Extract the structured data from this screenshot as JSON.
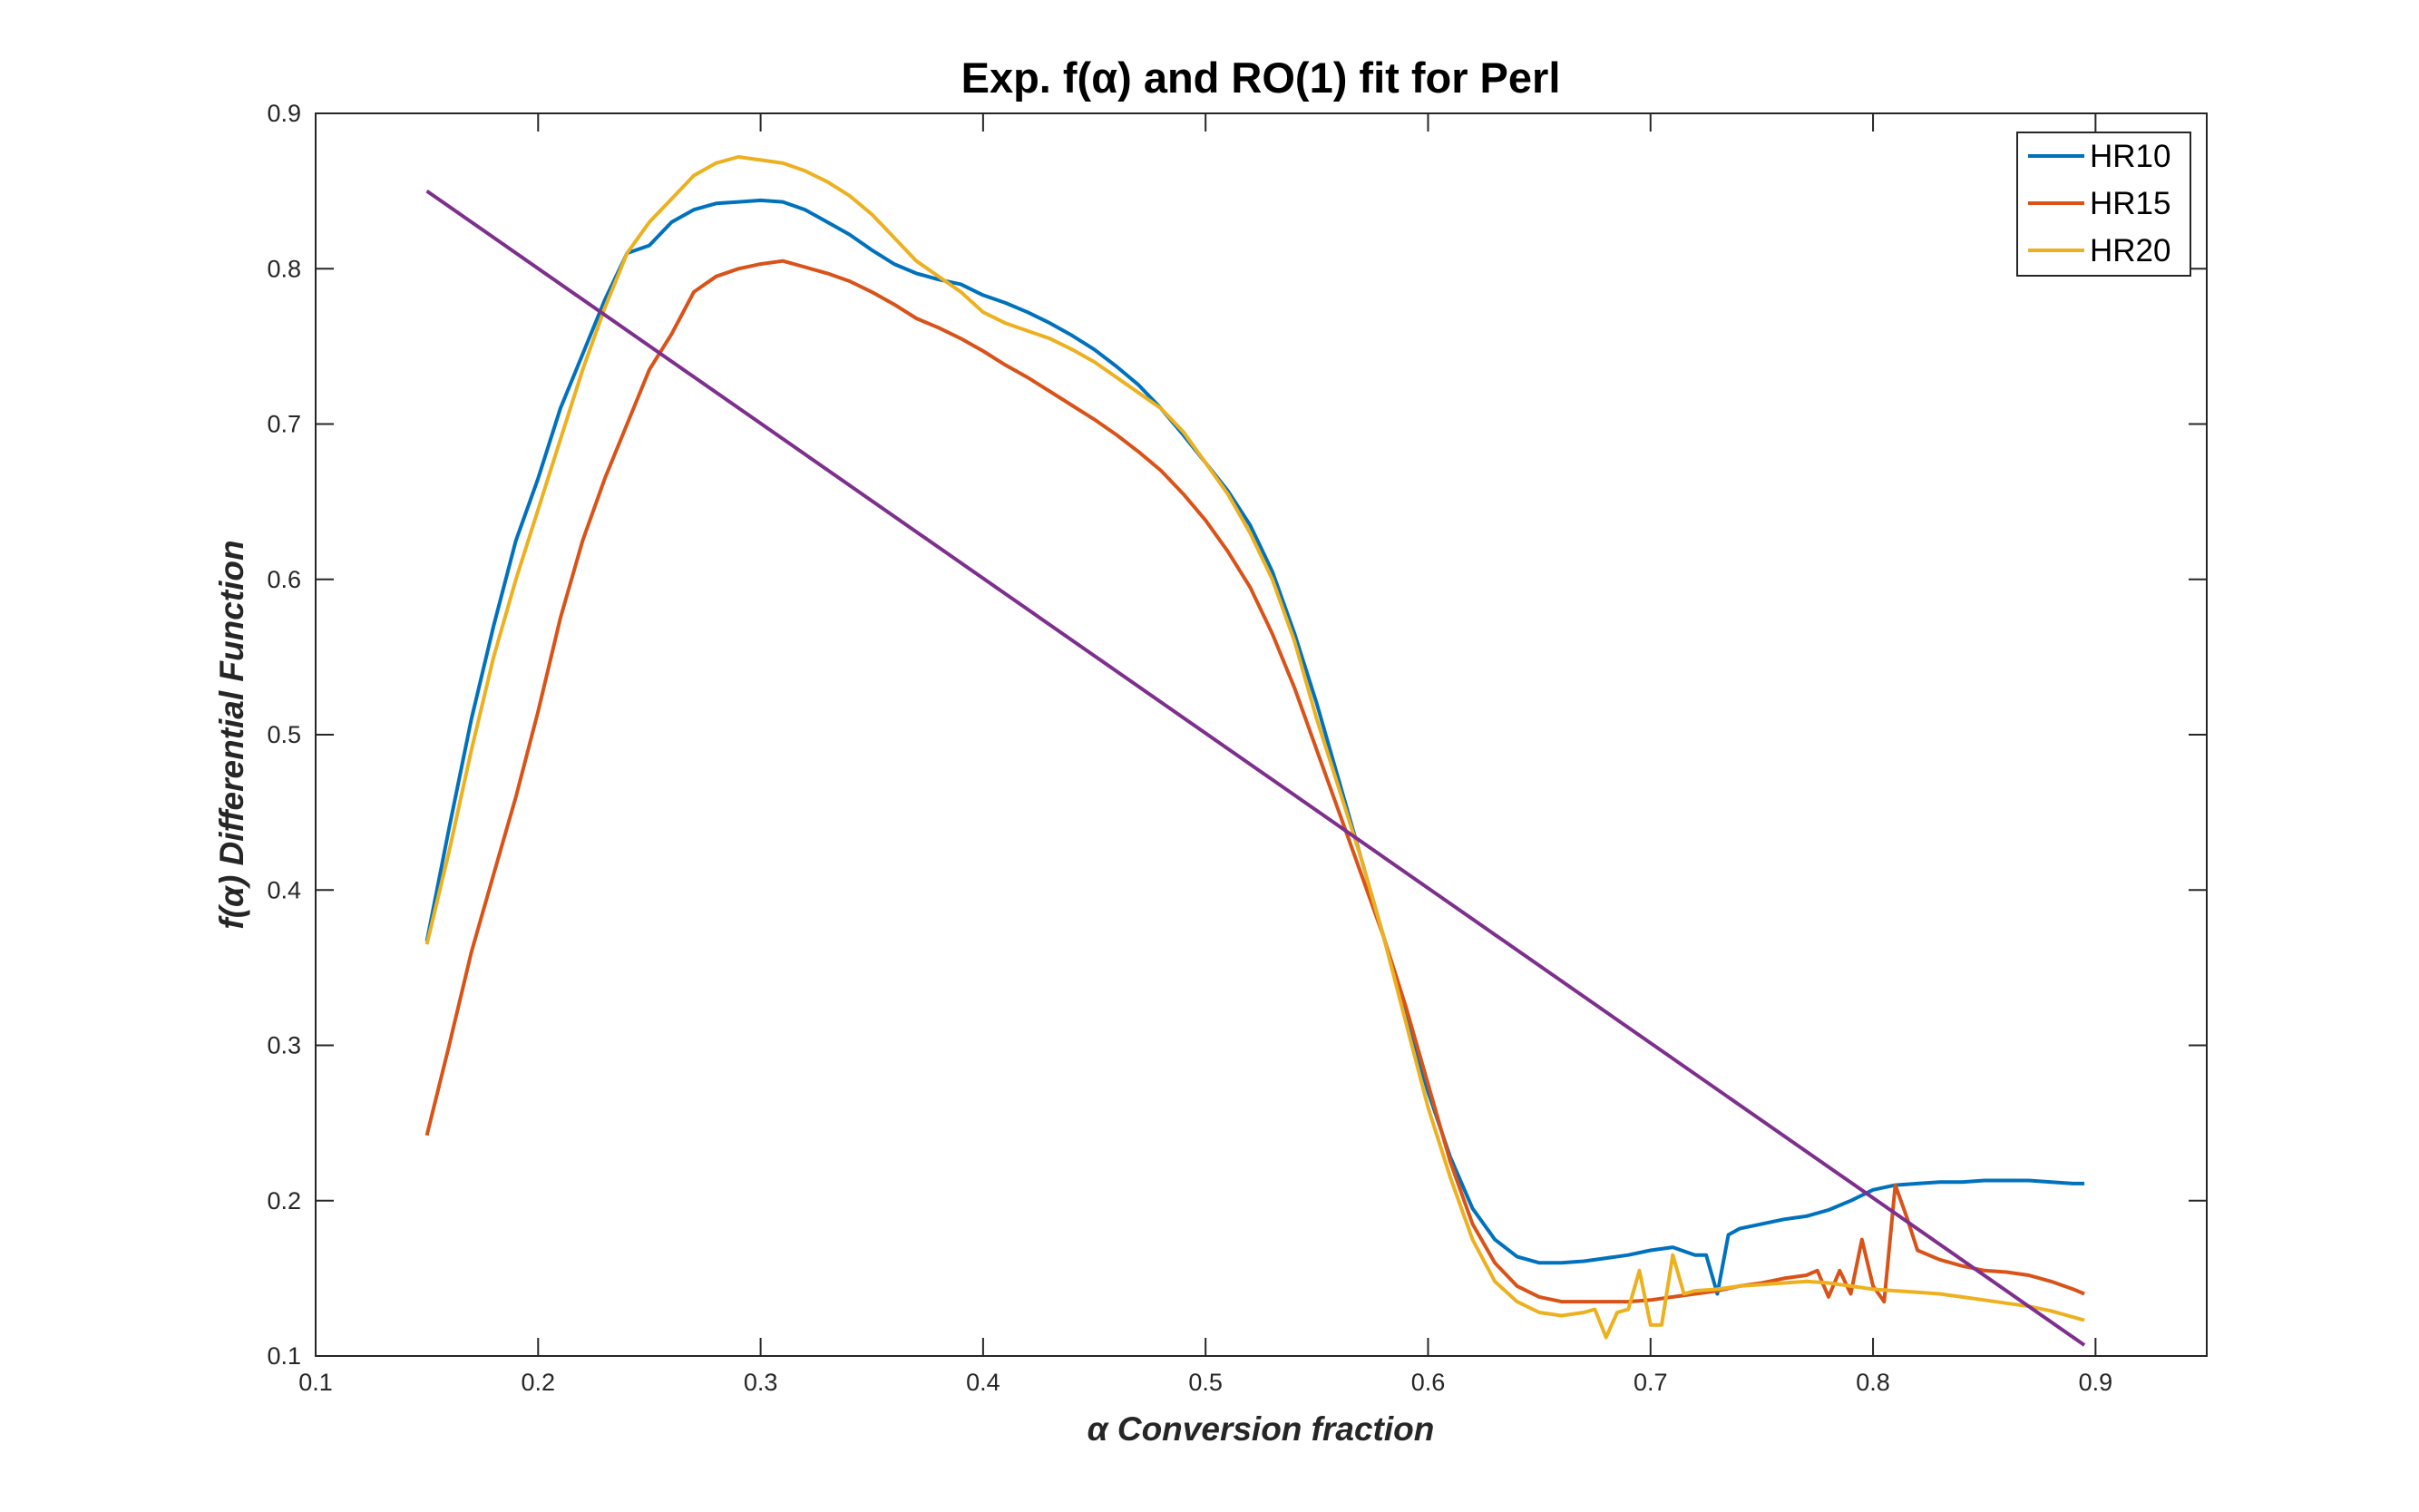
{
  "chart_data": {
    "type": "line",
    "title": "Exp. f(α) and RO(1) fit for Perl",
    "xlabel": "α  Conversion fraction",
    "ylabel": "f(α)  Differential Function",
    "xlim": [
      0.1,
      0.95
    ],
    "ylim": [
      0.1,
      0.9
    ],
    "xticks": [
      0.1,
      0.2,
      0.3,
      0.4,
      0.5,
      0.6,
      0.7,
      0.8,
      0.9
    ],
    "yticks": [
      0.1,
      0.2,
      0.3,
      0.4,
      0.5,
      0.6,
      0.7,
      0.8,
      0.9
    ],
    "xtick_labels": [
      "0.1",
      "0.2",
      "0.3",
      "0.4",
      "0.5",
      "0.6",
      "0.7",
      "0.8",
      "0.9"
    ],
    "ytick_labels": [
      "0.1",
      "0.2",
      "0.3",
      "0.4",
      "0.5",
      "0.6",
      "0.7",
      "0.8",
      "0.9"
    ],
    "grid": false,
    "legend_position": "top-right",
    "series": [
      {
        "name": "HR10",
        "color": "#0072BD",
        "points": [
          [
            0.15,
            0.367
          ],
          [
            0.16,
            0.44
          ],
          [
            0.17,
            0.51
          ],
          [
            0.18,
            0.57
          ],
          [
            0.19,
            0.625
          ],
          [
            0.2,
            0.665
          ],
          [
            0.21,
            0.71
          ],
          [
            0.22,
            0.745
          ],
          [
            0.23,
            0.78
          ],
          [
            0.24,
            0.81
          ],
          [
            0.25,
            0.815
          ],
          [
            0.26,
            0.83
          ],
          [
            0.27,
            0.838
          ],
          [
            0.28,
            0.842
          ],
          [
            0.29,
            0.843
          ],
          [
            0.3,
            0.844
          ],
          [
            0.31,
            0.843
          ],
          [
            0.32,
            0.838
          ],
          [
            0.33,
            0.83
          ],
          [
            0.34,
            0.822
          ],
          [
            0.35,
            0.812
          ],
          [
            0.36,
            0.803
          ],
          [
            0.37,
            0.797
          ],
          [
            0.38,
            0.793
          ],
          [
            0.39,
            0.79
          ],
          [
            0.4,
            0.783
          ],
          [
            0.41,
            0.778
          ],
          [
            0.42,
            0.772
          ],
          [
            0.43,
            0.765
          ],
          [
            0.44,
            0.757
          ],
          [
            0.45,
            0.748
          ],
          [
            0.46,
            0.737
          ],
          [
            0.47,
            0.725
          ],
          [
            0.48,
            0.71
          ],
          [
            0.49,
            0.693
          ],
          [
            0.5,
            0.675
          ],
          [
            0.51,
            0.657
          ],
          [
            0.52,
            0.635
          ],
          [
            0.53,
            0.605
          ],
          [
            0.54,
            0.565
          ],
          [
            0.55,
            0.52
          ],
          [
            0.56,
            0.47
          ],
          [
            0.57,
            0.42
          ],
          [
            0.58,
            0.37
          ],
          [
            0.59,
            0.32
          ],
          [
            0.6,
            0.27
          ],
          [
            0.61,
            0.228
          ],
          [
            0.62,
            0.195
          ],
          [
            0.63,
            0.175
          ],
          [
            0.64,
            0.164
          ],
          [
            0.65,
            0.16
          ],
          [
            0.66,
            0.16
          ],
          [
            0.67,
            0.161
          ],
          [
            0.68,
            0.163
          ],
          [
            0.69,
            0.165
          ],
          [
            0.7,
            0.168
          ],
          [
            0.71,
            0.17
          ],
          [
            0.72,
            0.165
          ],
          [
            0.725,
            0.165
          ],
          [
            0.73,
            0.14
          ],
          [
            0.735,
            0.178
          ],
          [
            0.74,
            0.182
          ],
          [
            0.75,
            0.185
          ],
          [
            0.76,
            0.188
          ],
          [
            0.77,
            0.19
          ],
          [
            0.78,
            0.194
          ],
          [
            0.79,
            0.2
          ],
          [
            0.8,
            0.207
          ],
          [
            0.81,
            0.21
          ],
          [
            0.82,
            0.211
          ],
          [
            0.83,
            0.212
          ],
          [
            0.84,
            0.212
          ],
          [
            0.85,
            0.213
          ],
          [
            0.86,
            0.213
          ],
          [
            0.87,
            0.213
          ],
          [
            0.88,
            0.212
          ],
          [
            0.89,
            0.211
          ],
          [
            0.895,
            0.211
          ]
        ]
      },
      {
        "name": "HR15",
        "color": "#D95319",
        "points": [
          [
            0.15,
            0.242
          ],
          [
            0.16,
            0.3
          ],
          [
            0.17,
            0.36
          ],
          [
            0.18,
            0.41
          ],
          [
            0.19,
            0.46
          ],
          [
            0.2,
            0.515
          ],
          [
            0.21,
            0.575
          ],
          [
            0.22,
            0.625
          ],
          [
            0.23,
            0.665
          ],
          [
            0.24,
            0.7
          ],
          [
            0.25,
            0.735
          ],
          [
            0.26,
            0.758
          ],
          [
            0.27,
            0.785
          ],
          [
            0.28,
            0.795
          ],
          [
            0.29,
            0.8
          ],
          [
            0.3,
            0.803
          ],
          [
            0.31,
            0.805
          ],
          [
            0.32,
            0.801
          ],
          [
            0.33,
            0.797
          ],
          [
            0.34,
            0.792
          ],
          [
            0.35,
            0.785
          ],
          [
            0.36,
            0.777
          ],
          [
            0.37,
            0.768
          ],
          [
            0.38,
            0.762
          ],
          [
            0.39,
            0.755
          ],
          [
            0.4,
            0.747
          ],
          [
            0.41,
            0.738
          ],
          [
            0.42,
            0.73
          ],
          [
            0.43,
            0.721
          ],
          [
            0.44,
            0.712
          ],
          [
            0.45,
            0.703
          ],
          [
            0.46,
            0.693
          ],
          [
            0.47,
            0.682
          ],
          [
            0.48,
            0.67
          ],
          [
            0.49,
            0.655
          ],
          [
            0.5,
            0.638
          ],
          [
            0.51,
            0.618
          ],
          [
            0.52,
            0.595
          ],
          [
            0.53,
            0.565
          ],
          [
            0.54,
            0.53
          ],
          [
            0.55,
            0.49
          ],
          [
            0.56,
            0.45
          ],
          [
            0.57,
            0.41
          ],
          [
            0.58,
            0.37
          ],
          [
            0.59,
            0.325
          ],
          [
            0.6,
            0.275
          ],
          [
            0.61,
            0.225
          ],
          [
            0.62,
            0.185
          ],
          [
            0.63,
            0.16
          ],
          [
            0.64,
            0.145
          ],
          [
            0.65,
            0.138
          ],
          [
            0.66,
            0.135
          ],
          [
            0.67,
            0.135
          ],
          [
            0.68,
            0.135
          ],
          [
            0.69,
            0.135
          ],
          [
            0.7,
            0.136
          ],
          [
            0.71,
            0.138
          ],
          [
            0.72,
            0.14
          ],
          [
            0.73,
            0.142
          ],
          [
            0.74,
            0.145
          ],
          [
            0.75,
            0.147
          ],
          [
            0.76,
            0.15
          ],
          [
            0.77,
            0.152
          ],
          [
            0.775,
            0.155
          ],
          [
            0.78,
            0.138
          ],
          [
            0.785,
            0.155
          ],
          [
            0.79,
            0.14
          ],
          [
            0.795,
            0.175
          ],
          [
            0.8,
            0.145
          ],
          [
            0.805,
            0.135
          ],
          [
            0.81,
            0.21
          ],
          [
            0.815,
            0.19
          ],
          [
            0.82,
            0.168
          ],
          [
            0.83,
            0.162
          ],
          [
            0.84,
            0.158
          ],
          [
            0.85,
            0.155
          ],
          [
            0.86,
            0.154
          ],
          [
            0.87,
            0.152
          ],
          [
            0.88,
            0.148
          ],
          [
            0.89,
            0.143
          ],
          [
            0.895,
            0.14
          ]
        ]
      },
      {
        "name": "HR20",
        "color": "#EDB120",
        "points": [
          [
            0.15,
            0.365
          ],
          [
            0.16,
            0.425
          ],
          [
            0.17,
            0.49
          ],
          [
            0.18,
            0.55
          ],
          [
            0.19,
            0.6
          ],
          [
            0.2,
            0.645
          ],
          [
            0.21,
            0.69
          ],
          [
            0.22,
            0.735
          ],
          [
            0.23,
            0.775
          ],
          [
            0.24,
            0.81
          ],
          [
            0.25,
            0.83
          ],
          [
            0.26,
            0.845
          ],
          [
            0.27,
            0.86
          ],
          [
            0.28,
            0.868
          ],
          [
            0.29,
            0.872
          ],
          [
            0.3,
            0.87
          ],
          [
            0.31,
            0.868
          ],
          [
            0.32,
            0.863
          ],
          [
            0.33,
            0.856
          ],
          [
            0.34,
            0.847
          ],
          [
            0.35,
            0.835
          ],
          [
            0.36,
            0.82
          ],
          [
            0.37,
            0.805
          ],
          [
            0.38,
            0.795
          ],
          [
            0.39,
            0.785
          ],
          [
            0.4,
            0.772
          ],
          [
            0.41,
            0.765
          ],
          [
            0.42,
            0.76
          ],
          [
            0.43,
            0.755
          ],
          [
            0.44,
            0.748
          ],
          [
            0.45,
            0.74
          ],
          [
            0.46,
            0.73
          ],
          [
            0.47,
            0.72
          ],
          [
            0.48,
            0.71
          ],
          [
            0.49,
            0.695
          ],
          [
            0.5,
            0.675
          ],
          [
            0.51,
            0.655
          ],
          [
            0.52,
            0.63
          ],
          [
            0.53,
            0.6
          ],
          [
            0.54,
            0.56
          ],
          [
            0.55,
            0.51
          ],
          [
            0.56,
            0.465
          ],
          [
            0.57,
            0.42
          ],
          [
            0.58,
            0.37
          ],
          [
            0.59,
            0.315
          ],
          [
            0.6,
            0.26
          ],
          [
            0.61,
            0.215
          ],
          [
            0.62,
            0.175
          ],
          [
            0.63,
            0.148
          ],
          [
            0.64,
            0.135
          ],
          [
            0.65,
            0.128
          ],
          [
            0.66,
            0.126
          ],
          [
            0.67,
            0.128
          ],
          [
            0.675,
            0.13
          ],
          [
            0.68,
            0.112
          ],
          [
            0.685,
            0.128
          ],
          [
            0.69,
            0.13
          ],
          [
            0.695,
            0.155
          ],
          [
            0.7,
            0.12
          ],
          [
            0.705,
            0.12
          ],
          [
            0.71,
            0.165
          ],
          [
            0.715,
            0.14
          ],
          [
            0.72,
            0.142
          ],
          [
            0.73,
            0.143
          ],
          [
            0.74,
            0.145
          ],
          [
            0.75,
            0.146
          ],
          [
            0.76,
            0.147
          ],
          [
            0.77,
            0.148
          ],
          [
            0.78,
            0.147
          ],
          [
            0.79,
            0.145
          ],
          [
            0.8,
            0.143
          ],
          [
            0.81,
            0.142
          ],
          [
            0.82,
            0.141
          ],
          [
            0.83,
            0.14
          ],
          [
            0.84,
            0.138
          ],
          [
            0.85,
            0.136
          ],
          [
            0.86,
            0.134
          ],
          [
            0.87,
            0.132
          ],
          [
            0.88,
            0.129
          ],
          [
            0.89,
            0.125
          ],
          [
            0.895,
            0.123
          ]
        ]
      },
      {
        "name": "RO(1) fit",
        "color": "#7E2F8E",
        "points": [
          [
            0.15,
            0.85
          ],
          [
            0.895,
            0.107
          ]
        ]
      }
    ]
  }
}
